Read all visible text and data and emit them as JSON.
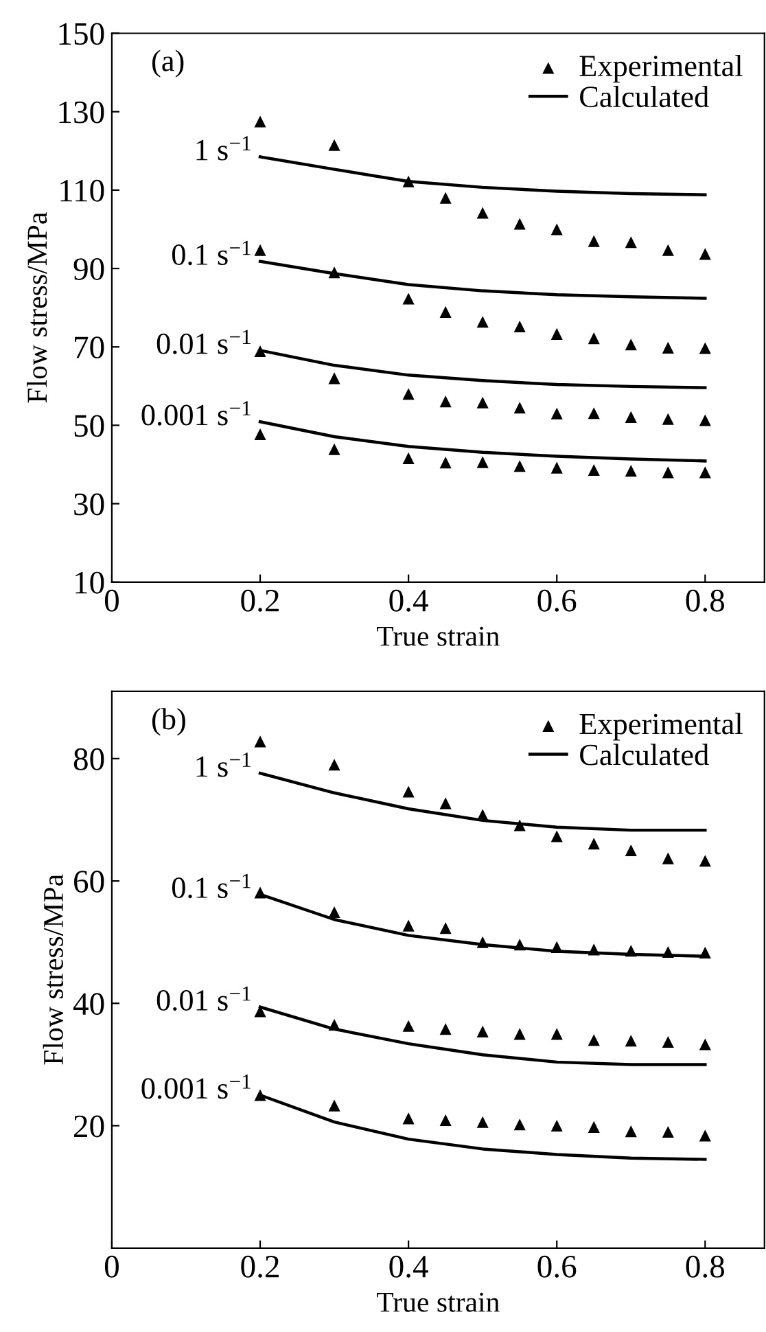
{
  "chart_data": [
    {
      "type": "scatter",
      "xlabel": "True strain",
      "ylabel": "Flow stress/MPa",
      "annotations": [
        "(a)",
        "1 s$^{−1}$",
        "0.1 s$^{−1}$",
        "0.01 s$^{−1}$",
        "0.001 s$^{−1}$"
      ],
      "xlim": [
        0,
        0.88
      ],
      "xticks": [
        0,
        0.2,
        0.4,
        0.6,
        0.8
      ],
      "ylim": [
        10,
        150
      ],
      "yticks": [
        10,
        30,
        50,
        70,
        90,
        110,
        130,
        150
      ],
      "legend": "top right",
      "grid": false,
      "series": [
        {
          "name": "Experimental",
          "type": "scatter",
          "marker": "triangle",
          "color": "#000000",
          "x": [
            0.2,
            0.3,
            0.4,
            0.45,
            0.5,
            0.55,
            0.6,
            0.65,
            0.7,
            0.75,
            0.8
          ],
          "values": [
            127.5,
            121.5,
            112.2,
            108,
            104.2,
            101.4,
            100,
            97,
            96.7,
            94.7,
            93.7
          ]
        },
        {
          "type": "scatter",
          "marker": "triangle",
          "color": "#000000",
          "x": [
            0.2,
            0.3,
            0.4,
            0.45,
            0.5,
            0.55,
            0.6,
            0.65,
            0.7,
            0.75,
            0.8
          ],
          "values": [
            94.7,
            89,
            82.3,
            78.9,
            76.4,
            75.2,
            73.3,
            72.2,
            70.6,
            69.8,
            69.7
          ]
        },
        {
          "type": "scatter",
          "marker": "triangle",
          "color": "#000000",
          "x": [
            0.2,
            0.3,
            0.4,
            0.45,
            0.5,
            0.55,
            0.6,
            0.65,
            0.7,
            0.75,
            0.8
          ],
          "values": [
            68.9,
            62,
            58,
            56.1,
            55.8,
            54.5,
            53,
            53.1,
            52.1,
            51.6,
            51.3
          ]
        },
        {
          "type": "scatter",
          "marker": "triangle",
          "color": "#000000",
          "x": [
            0.2,
            0.3,
            0.4,
            0.45,
            0.5,
            0.55,
            0.6,
            0.65,
            0.7,
            0.75,
            0.8
          ],
          "values": [
            47.7,
            43.9,
            41.6,
            40.5,
            40.6,
            39.6,
            39.2,
            38.6,
            38.4,
            38,
            38
          ]
        },
        {
          "name": "Calculated",
          "type": "line",
          "line_style": "solid",
          "color": "#000000",
          "x": [
            0.2,
            0.3,
            0.4,
            0.5,
            0.6,
            0.7,
            0.8
          ],
          "values": [
            118.5,
            115.3,
            112.2,
            110.7,
            109.7,
            109.1,
            108.8
          ]
        },
        {
          "type": "line",
          "line_style": "solid",
          "color": "#000000",
          "x": [
            0.2,
            0.3,
            0.4,
            0.5,
            0.6,
            0.7,
            0.8
          ],
          "values": [
            91.8,
            88.7,
            85.9,
            84.3,
            83.3,
            82.8,
            82.4
          ]
        },
        {
          "type": "line",
          "line_style": "solid",
          "color": "#000000",
          "x": [
            0.2,
            0.3,
            0.4,
            0.5,
            0.6,
            0.7,
            0.8
          ],
          "values": [
            69.1,
            65.3,
            62.8,
            61.4,
            60.4,
            59.9,
            59.6
          ]
        },
        {
          "type": "line",
          "line_style": "solid",
          "color": "#000000",
          "x": [
            0.2,
            0.3,
            0.4,
            0.5,
            0.6,
            0.7,
            0.8
          ],
          "values": [
            50.9,
            47.1,
            44.6,
            43.1,
            42.1,
            41.4,
            40.9
          ]
        }
      ]
    },
    {
      "type": "scatter",
      "xlabel": "True strain",
      "ylabel": "Flow stress/MPa",
      "annotations": [
        "(b)",
        "1 s$^{−1}$",
        "0.1 s$^{−1}$",
        "0.01 s$^{−1}$",
        "0.001 s$^{−1}$"
      ],
      "xlim": [
        0,
        0.88
      ],
      "xticks": [
        0,
        0.2,
        0.4,
        0.6,
        0.8
      ],
      "ylim": [
        0,
        91
      ],
      "yticks": [
        20,
        40,
        60,
        80
      ],
      "legend": "top right",
      "grid": false,
      "series": [
        {
          "name": "Experimental",
          "type": "scatter",
          "marker": "triangle",
          "color": "#000000",
          "x": [
            0.2,
            0.3,
            0.4,
            0.45,
            0.5,
            0.55,
            0.6,
            0.65,
            0.7,
            0.75,
            0.8
          ],
          "values": [
            82.8,
            79,
            74.6,
            72.7,
            70.8,
            69.1,
            67.3,
            66.1,
            65,
            63.7,
            63.3
          ]
        },
        {
          "type": "scatter",
          "marker": "triangle",
          "color": "#000000",
          "x": [
            0.2,
            0.3,
            0.4,
            0.45,
            0.5,
            0.55,
            0.6,
            0.65,
            0.7,
            0.75,
            0.8
          ],
          "values": [
            58.1,
            54.9,
            52.7,
            52.3,
            50,
            49.6,
            49.2,
            48.8,
            48.6,
            48.4,
            48.3
          ]
        },
        {
          "type": "scatter",
          "marker": "triangle",
          "color": "#000000",
          "x": [
            0.2,
            0.3,
            0.4,
            0.45,
            0.5,
            0.55,
            0.6,
            0.65,
            0.7,
            0.75,
            0.8
          ],
          "values": [
            38.7,
            36.5,
            36.3,
            35.8,
            35.4,
            35,
            35,
            34,
            33.9,
            33.7,
            33.3
          ]
        },
        {
          "type": "scatter",
          "marker": "triangle",
          "color": "#000000",
          "x": [
            0.2,
            0.3,
            0.4,
            0.45,
            0.5,
            0.55,
            0.6,
            0.65,
            0.7,
            0.75,
            0.8
          ],
          "values": [
            25,
            23.3,
            21.2,
            20.9,
            20.6,
            20.2,
            20,
            19.8,
            19.1,
            19,
            18.4
          ]
        },
        {
          "name": "Calculated",
          "type": "line",
          "line_style": "solid",
          "color": "#000000",
          "x": [
            0.2,
            0.3,
            0.4,
            0.5,
            0.6,
            0.7,
            0.8
          ],
          "values": [
            77.6,
            74.4,
            71.8,
            69.9,
            68.8,
            68.3,
            68.3
          ]
        },
        {
          "type": "line",
          "line_style": "solid",
          "color": "#000000",
          "x": [
            0.2,
            0.3,
            0.4,
            0.5,
            0.6,
            0.7,
            0.8
          ],
          "values": [
            57.8,
            53.7,
            51.1,
            49.6,
            48.5,
            48,
            47.7
          ]
        },
        {
          "type": "line",
          "line_style": "solid",
          "color": "#000000",
          "x": [
            0.2,
            0.3,
            0.4,
            0.5,
            0.6,
            0.7,
            0.8
          ],
          "values": [
            39.4,
            35.8,
            33.4,
            31.6,
            30.4,
            30,
            30
          ]
        },
        {
          "type": "line",
          "line_style": "solid",
          "color": "#000000",
          "x": [
            0.2,
            0.3,
            0.4,
            0.5,
            0.6,
            0.7,
            0.8
          ],
          "values": [
            25,
            20.6,
            17.8,
            16.2,
            15.3,
            14.7,
            14.5
          ]
        }
      ]
    }
  ]
}
